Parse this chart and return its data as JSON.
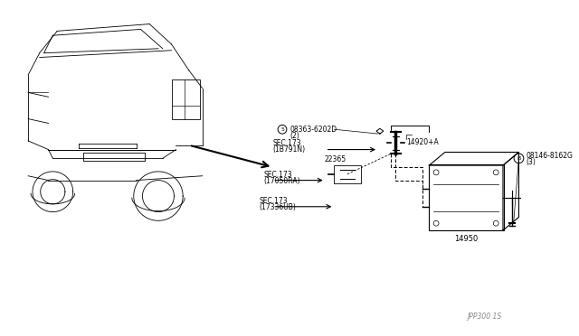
{
  "background_color": "#ffffff",
  "title": "",
  "fig_width": 6.4,
  "fig_height": 3.72,
  "dpi": 100,
  "car_color": "#000000",
  "diagram_color": "#000000",
  "label_fontsize": 5.5,
  "labels": {
    "part1_num": "08363-6202D",
    "part1_circle": "5",
    "part1_qty": "(2)",
    "part2_label": "SEC.173",
    "part2_sub": "(1B791N)",
    "part3_num": "22365",
    "part4_label": "SEC.173",
    "part4_sub": "(17050RA)",
    "part5_label": "SEC.173",
    "part5_sub": "(17336UB)",
    "part6_num": "14920+A",
    "part7_num": "08146-8162G",
    "part7_circle": "B",
    "part7_qty": "(3)",
    "part8_num": "14950",
    "ref_code": "JPP300 1S"
  }
}
